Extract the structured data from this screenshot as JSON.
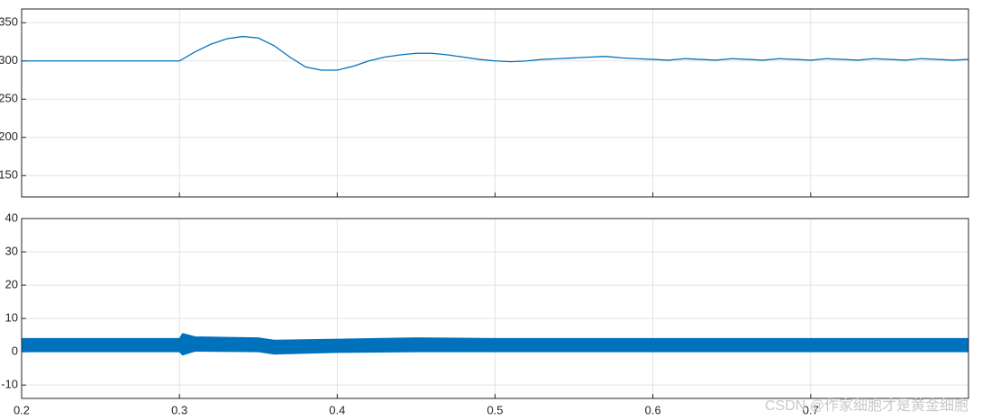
{
  "chart_data": [
    {
      "type": "line",
      "x": [
        0.2,
        0.21,
        0.22,
        0.23,
        0.24,
        0.25,
        0.26,
        0.27,
        0.28,
        0.29,
        0.3,
        0.31,
        0.32,
        0.33,
        0.34,
        0.35,
        0.36,
        0.37,
        0.38,
        0.39,
        0.4,
        0.41,
        0.42,
        0.43,
        0.44,
        0.45,
        0.46,
        0.47,
        0.48,
        0.49,
        0.5,
        0.51,
        0.52,
        0.53,
        0.54,
        0.55,
        0.56,
        0.57,
        0.58,
        0.59,
        0.6,
        0.61,
        0.62,
        0.63,
        0.64,
        0.65,
        0.66,
        0.67,
        0.68,
        0.69,
        0.7,
        0.71,
        0.72,
        0.73,
        0.74,
        0.75,
        0.76,
        0.77,
        0.78,
        0.79,
        0.8
      ],
      "series": [
        {
          "color": "#0072bd",
          "values": [
            300,
            300,
            300,
            300,
            300,
            300,
            300,
            300,
            300,
            300,
            300,
            312,
            322,
            329,
            332,
            330,
            320,
            305,
            292,
            288,
            288,
            293,
            300,
            305,
            308,
            310,
            310,
            308,
            305,
            302,
            300,
            299,
            300,
            302,
            303,
            304,
            305,
            306,
            304,
            303,
            302,
            301,
            303,
            302,
            301,
            303,
            302,
            301,
            303,
            302,
            301,
            303,
            302,
            301,
            303,
            302,
            301,
            303,
            302,
            301,
            302
          ]
        }
      ],
      "xlim": [
        0.2,
        0.8
      ],
      "ylim": [
        122,
        368
      ],
      "xticks": [
        0.2,
        0.3,
        0.4,
        0.5,
        0.6,
        0.7
      ],
      "yticks": [
        150,
        200,
        250,
        300,
        350
      ],
      "grid": true,
      "show_xtick_labels": false
    },
    {
      "type": "band",
      "x": [
        0.2,
        0.25,
        0.3,
        0.302,
        0.31,
        0.35,
        0.36,
        0.4,
        0.45,
        0.5,
        0.55,
        0.6,
        0.65,
        0.7,
        0.75,
        0.8
      ],
      "upper": [
        4,
        4,
        4,
        5.5,
        4.5,
        4.2,
        3.5,
        3.8,
        4.2,
        4,
        4,
        4,
        4,
        4,
        4,
        4
      ],
      "lower": [
        0,
        0,
        0,
        -1,
        0.2,
        0,
        -0.7,
        -0.2,
        0,
        0,
        0,
        0,
        0,
        0,
        0,
        0
      ],
      "color": "#0072bd",
      "xlim": [
        0.2,
        0.8
      ],
      "ylim": [
        -14,
        40
      ],
      "xticks": [
        0.2,
        0.3,
        0.4,
        0.5,
        0.6,
        0.7
      ],
      "yticks": [
        -10,
        0,
        10,
        20,
        30,
        40
      ],
      "grid": true,
      "show_xtick_labels": true
    }
  ],
  "watermark": "CSDN @作家细胞才是黄金细胞"
}
